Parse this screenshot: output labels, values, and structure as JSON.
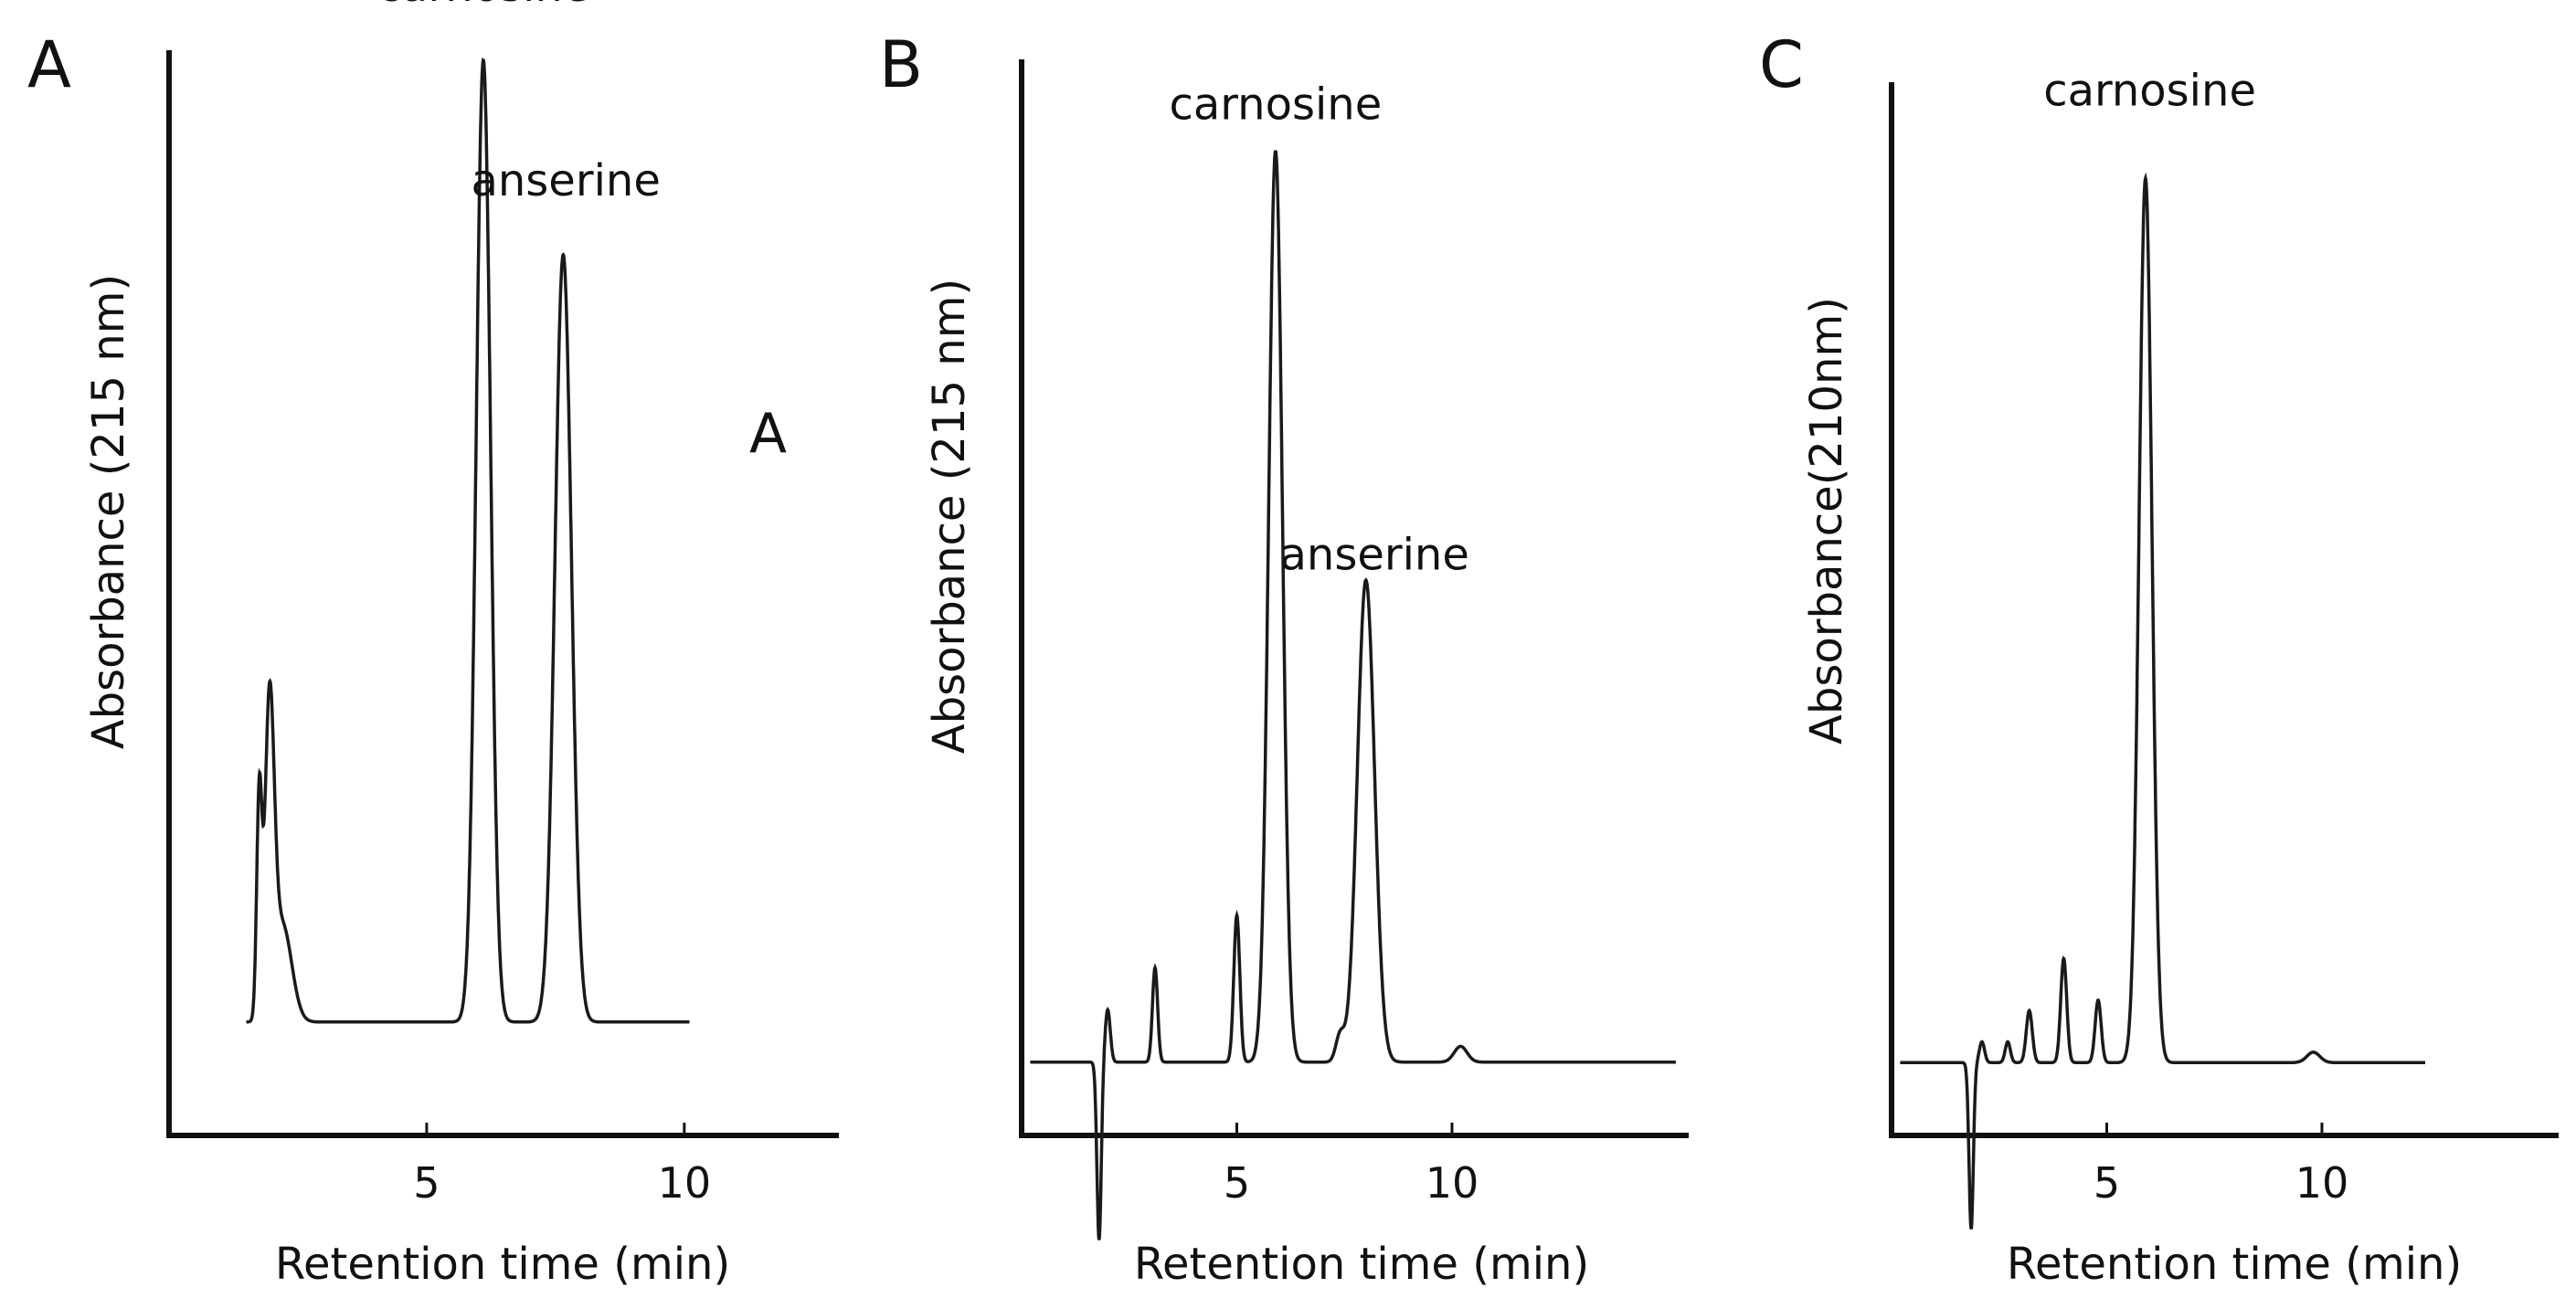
{
  "colors": {
    "background": "#ffffff",
    "ink": "#111111",
    "trace": "#1a1a1a"
  },
  "chart_data": [
    {
      "type": "line",
      "panel_label": "A",
      "extra_label": "A",
      "title": "",
      "xlabel": "Retention time (min)",
      "ylabel": "Absorbance (215 nm)",
      "xlim": [
        0,
        13
      ],
      "ylim": [
        0,
        100
      ],
      "xticks": [
        5,
        10
      ],
      "grid": false,
      "baseline": 10.5,
      "peaks": [
        {
          "name": "",
          "rt": 1.95,
          "height": 28,
          "width": 0.09
        },
        {
          "name": "",
          "rt": 2.2,
          "height": 9,
          "width": 0.18
        },
        {
          "name": "",
          "rt": 1.75,
          "height": 20,
          "width": 0.05
        },
        {
          "name": "carnosine",
          "rt": 6.1,
          "height": 89,
          "width": 0.14
        },
        {
          "name": "anserine",
          "rt": 7.65,
          "height": 71,
          "width": 0.16
        }
      ],
      "annotations": [
        {
          "text": "carnosine",
          "x": 6.1,
          "y": 105
        },
        {
          "text": "anserine",
          "x": 7.7,
          "y": 87
        }
      ]
    },
    {
      "type": "line",
      "panel_label": "B",
      "title": "",
      "xlabel": "Retention time (min)",
      "ylabel": "Absorbance (215 nm)",
      "xlim": [
        0,
        15.5
      ],
      "ylim": [
        0,
        100
      ],
      "xticks": [
        5,
        10
      ],
      "grid": false,
      "baseline": 7,
      "peaks": [
        {
          "name": "",
          "rt": 1.8,
          "height": -17,
          "width": 0.05
        },
        {
          "name": "",
          "rt": 2.0,
          "height": 5,
          "width": 0.06
        },
        {
          "name": "",
          "rt": 3.1,
          "height": 9,
          "width": 0.06
        },
        {
          "name": "",
          "rt": 5.0,
          "height": 14,
          "width": 0.07
        },
        {
          "name": "carnosine",
          "rt": 5.9,
          "height": 87,
          "width": 0.16
        },
        {
          "name": "",
          "rt": 7.4,
          "height": 2.5,
          "width": 0.1
        },
        {
          "name": "anserine",
          "rt": 8.0,
          "height": 46,
          "width": 0.2
        },
        {
          "name": "",
          "rt": 10.2,
          "height": 1.5,
          "width": 0.15
        }
      ],
      "annotations": [
        {
          "text": "carnosine",
          "x": 5.9,
          "y": 97
        },
        {
          "text": "anserine",
          "x": 8.2,
          "y": 54
        }
      ]
    },
    {
      "type": "line",
      "panel_label": "C",
      "title": "",
      "xlabel": "Retention time (min)",
      "ylabel": "Absorbance(210nm)",
      "xlim": [
        0,
        15.5
      ],
      "ylim": [
        0,
        100
      ],
      "xticks": [
        5,
        10
      ],
      "grid": false,
      "baseline": 7,
      "peaks": [
        {
          "name": "",
          "rt": 1.85,
          "height": -16,
          "width": 0.05
        },
        {
          "name": "",
          "rt": 2.1,
          "height": 2,
          "width": 0.06
        },
        {
          "name": "",
          "rt": 2.7,
          "height": 2,
          "width": 0.06
        },
        {
          "name": "",
          "rt": 3.2,
          "height": 5,
          "width": 0.07
        },
        {
          "name": "",
          "rt": 4.0,
          "height": 10,
          "width": 0.07
        },
        {
          "name": "",
          "rt": 4.8,
          "height": 6,
          "width": 0.07
        },
        {
          "name": "carnosine",
          "rt": 5.9,
          "height": 85,
          "width": 0.15
        },
        {
          "name": "",
          "rt": 9.8,
          "height": 1,
          "width": 0.15
        }
      ],
      "annotations": [
        {
          "text": "carnosine",
          "x": 6.0,
          "y": 99
        }
      ]
    }
  ]
}
